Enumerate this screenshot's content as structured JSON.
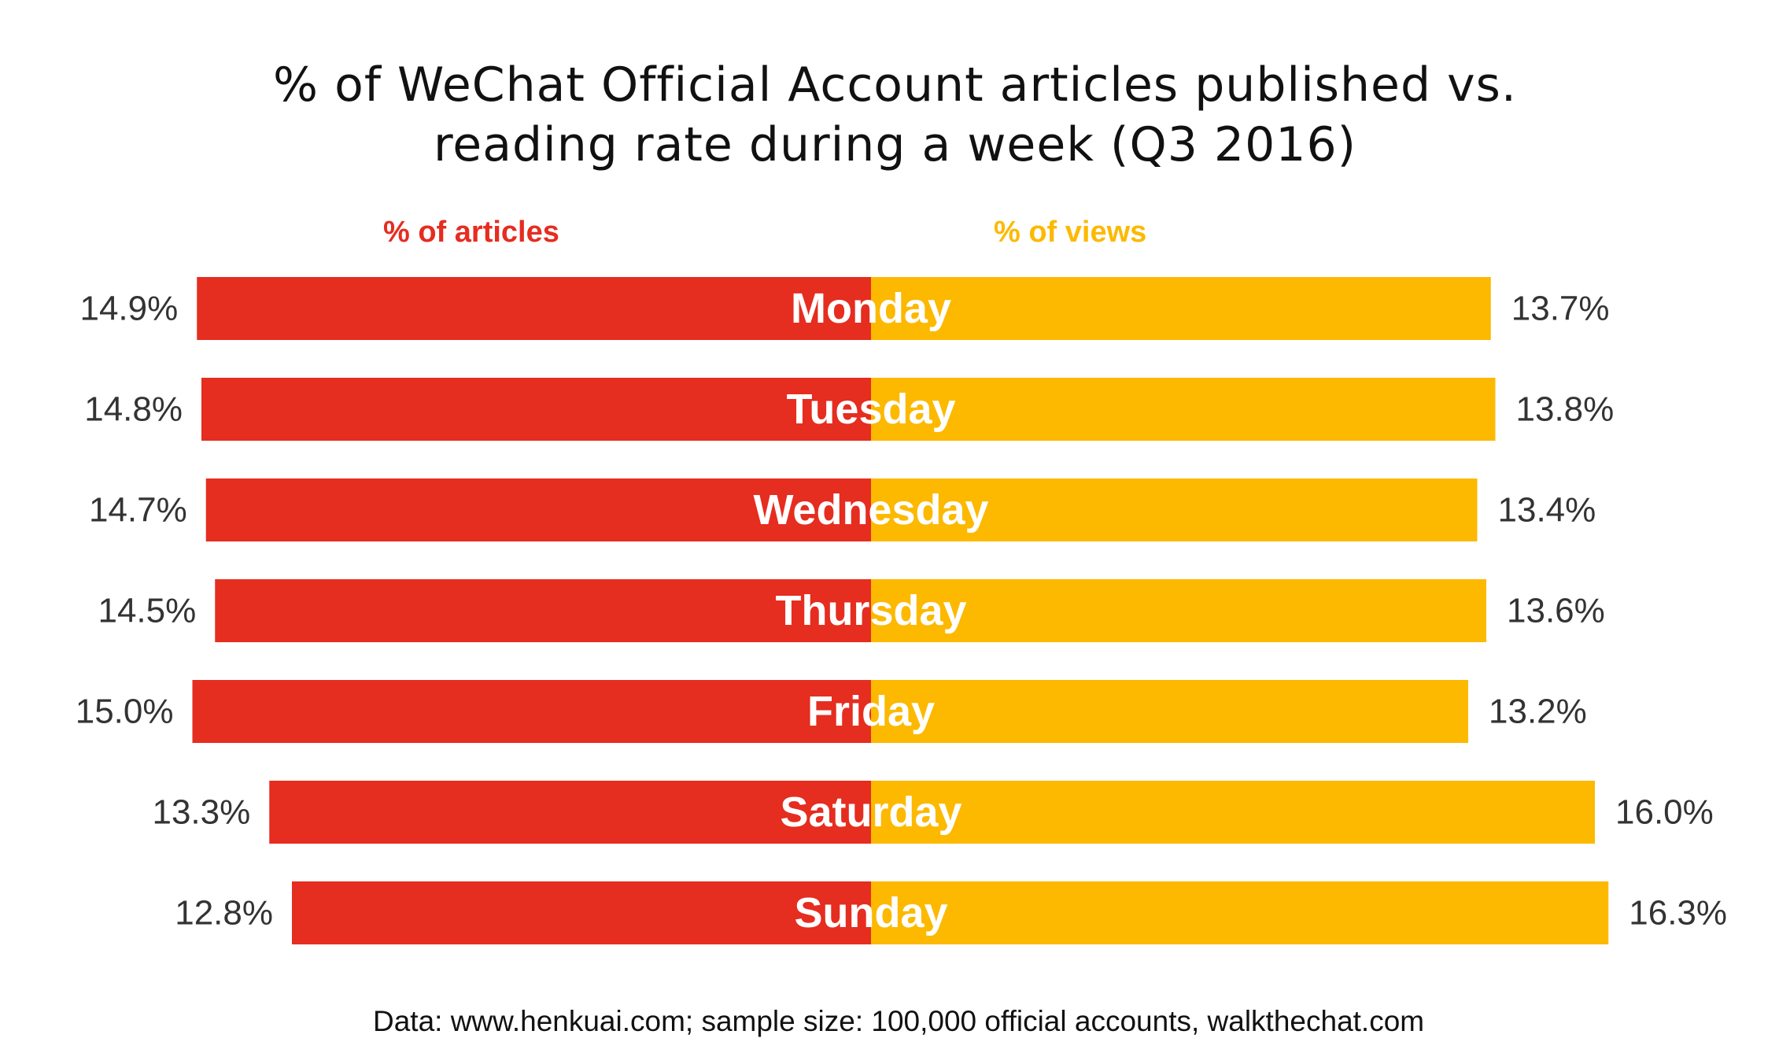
{
  "chart_data": {
    "type": "bar",
    "title": "% of WeChat Official Account articles published vs. reading rate during a week (Q3 2016)",
    "title_lines": [
      "% of WeChat Official Account articles published vs.",
      "reading rate during a week (Q3 2016)"
    ],
    "categories": [
      "Monday",
      "Tuesday",
      "Wednesday",
      "Thursday",
      "Friday",
      "Saturday",
      "Sunday"
    ],
    "series": [
      {
        "name": "% of articles",
        "values": [
          14.9,
          14.8,
          14.7,
          14.5,
          15.0,
          13.3,
          12.8
        ],
        "labels": [
          "14.9%",
          "14.8%",
          "14.7%",
          "14.5%",
          "15.0%",
          "13.3%",
          "12.8%"
        ],
        "color": "#E52D20"
      },
      {
        "name": "% of views",
        "values": [
          13.7,
          13.8,
          13.4,
          13.6,
          13.2,
          16.0,
          16.3
        ],
        "labels": [
          "13.7%",
          "13.8%",
          "13.4%",
          "13.6%",
          "13.2%",
          "16.0%",
          "16.3%"
        ],
        "color": "#FCB900"
      }
    ],
    "orientation": "horizontal-diverging",
    "legend": "top",
    "grid": false,
    "source": "Data: www.henkuai.com; sample size: 100,000 official accounts, walkthechat.com"
  },
  "colors": {
    "articles": "#E52D20",
    "views": "#FCB900",
    "text": "#333333",
    "day_label": "#FFFFFF"
  }
}
